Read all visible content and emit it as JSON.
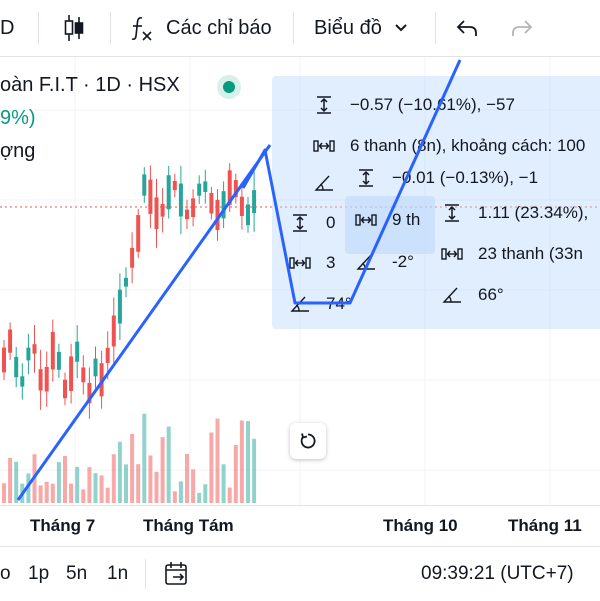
{
  "toolbar": {
    "interval_label": "D",
    "indicators_label": "Các chỉ báo",
    "chart_type_label": "Biểu đồ"
  },
  "legend": {
    "symbol_line": "oàn F.I.T · 1D · HSX",
    "change_pct": "9%)",
    "volume_label": "ợng"
  },
  "measure": {
    "a_price": "−0.57 (−10.61%), −57",
    "a_bars": "6 thanh (8n), khoảng cách: 100",
    "b_price": "−0.01 (−0.13%), −1",
    "c_price": "0",
    "c_bars": "9 th",
    "c_angle": "3",
    "c_deg": "-2°",
    "d_price": "1.11 (23.34%),",
    "d_bars": "23 thanh (33n",
    "d_angle": "66°",
    "e_angle": "74°"
  },
  "xaxis": {
    "labels": [
      "Tháng 7",
      "Tháng Tám",
      "Tháng 10",
      "Tháng 11"
    ]
  },
  "bottombar": {
    "ranges": [
      "o",
      "1p",
      "5n",
      "1n"
    ],
    "clock": "09:39:21 (UTC+7)"
  },
  "colors": {
    "up": "#26a69a",
    "down": "#ef5350",
    "drawing": "#2962ff",
    "panel": "#bbd9fb"
  }
}
